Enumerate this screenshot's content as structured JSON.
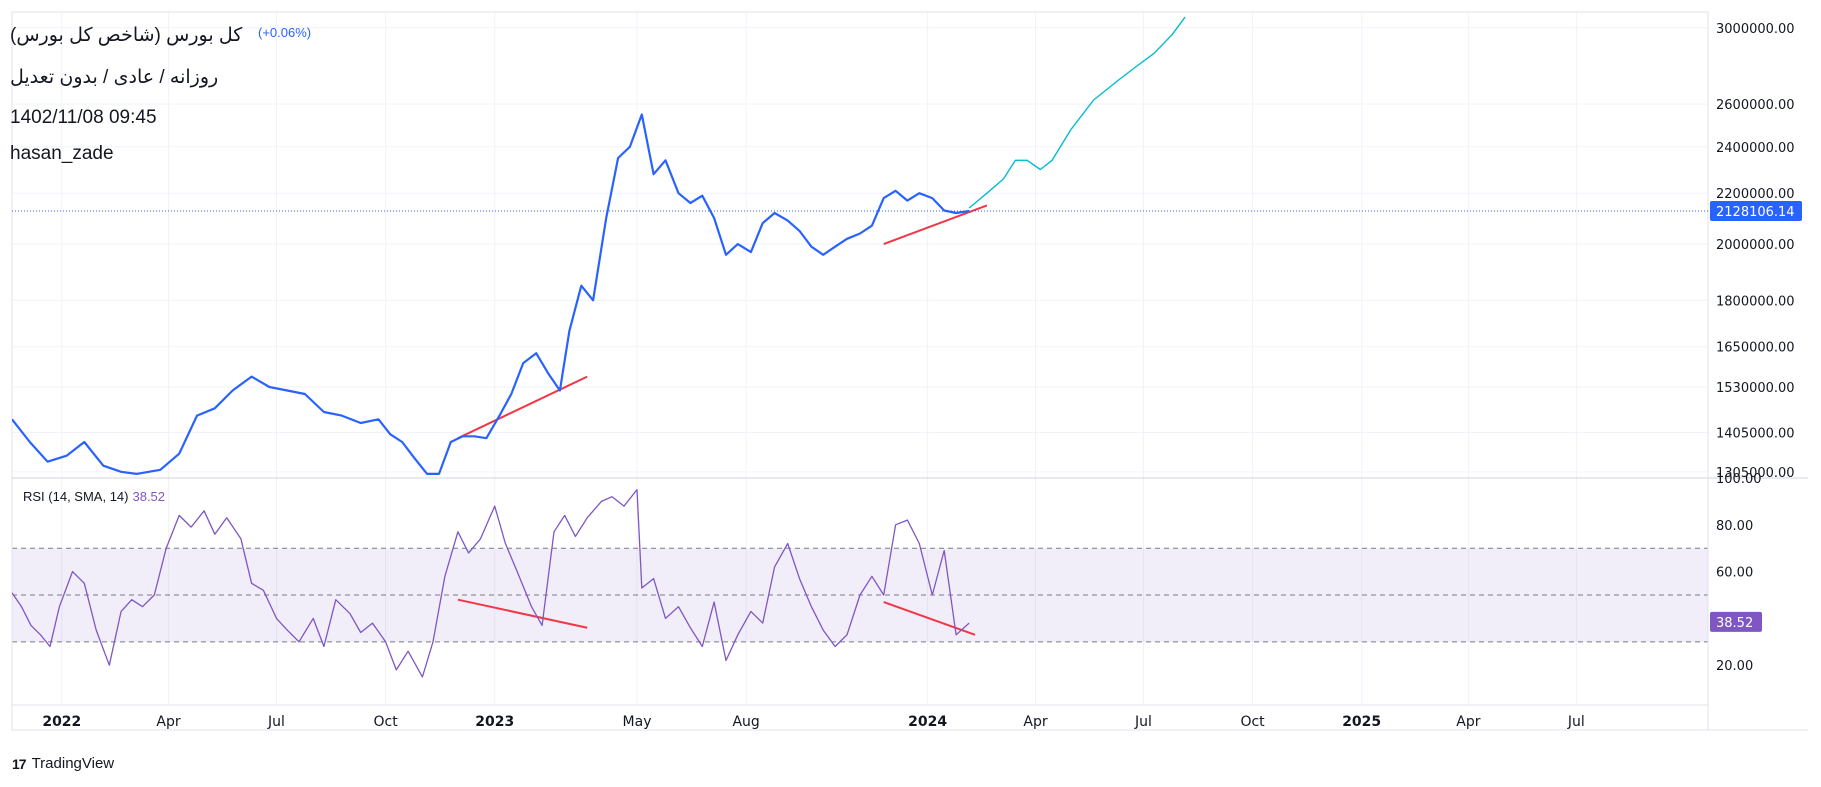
{
  "header": {
    "title": "کل بورس (شاخص کل بورس)",
    "subtitle": "روزانه / عادی / بدون تعدیل",
    "datetime": "1402/11/08 09:45",
    "author": "hasan_zade",
    "change": "(+0.06%)"
  },
  "colors": {
    "price_line": "#2962ff",
    "projection_line": "#00bcd4",
    "trend_line": "#f23645",
    "rsi_line": "#7e57c2",
    "rsi_band": "#7e57c2",
    "last_price_badge": "#2962ff",
    "rsi_badge": "#7e57c2"
  },
  "brand": {
    "name": "TradingView",
    "icon": "tradingview-logo-icon"
  },
  "chart_data": [
    {
      "type": "line",
      "name": "price",
      "y_scale": "log",
      "y_ticks": [
        "3000000.00",
        "2600000.00",
        "2400000.00",
        "2200000.00",
        "2000000.00",
        "1800000.00",
        "1650000.00",
        "1530000.00",
        "1405000.00",
        "1305000.00"
      ],
      "y_tick_values": [
        3000000,
        2600000,
        2400000,
        2200000,
        2000000,
        1800000,
        1650000,
        1530000,
        1405000,
        1305000
      ],
      "ylim": [
        1290000,
        3090000
      ],
      "x_labels": [
        "2022",
        "Apr",
        "Jul",
        "Oct",
        "2023",
        "May",
        "Aug",
        "2024",
        "Apr",
        "Jul",
        "Oct",
        "2025",
        "Apr",
        "Jul"
      ],
      "x_label_years": [
        true,
        false,
        false,
        false,
        true,
        false,
        false,
        true,
        false,
        false,
        false,
        true,
        false,
        false
      ],
      "x_label_dates": [
        "2022-01-01",
        "2022-04-01",
        "2022-07-01",
        "2022-10-01",
        "2023-01-01",
        "2023-05-01",
        "2023-08-01",
        "2024-01-01",
        "2024-04-01",
        "2024-07-01",
        "2024-10-01",
        "2025-01-01",
        "2025-04-01",
        "2025-07-01"
      ],
      "last_price": "2128106.14",
      "last_price_value": 2128106.14,
      "series": [
        {
          "name": "price",
          "dates": [
            "2021-11-20",
            "2021-12-05",
            "2021-12-20",
            "2022-01-05",
            "2022-01-20",
            "2022-02-05",
            "2022-02-20",
            "2022-03-05",
            "2022-03-25",
            "2022-04-10",
            "2022-04-25",
            "2022-05-10",
            "2022-05-25",
            "2022-06-10",
            "2022-06-25",
            "2022-07-10",
            "2022-07-25",
            "2022-08-10",
            "2022-08-25",
            "2022-09-10",
            "2022-09-25",
            "2022-10-05",
            "2022-10-15",
            "2022-10-25",
            "2022-11-05",
            "2022-11-15",
            "2022-11-25",
            "2022-12-05",
            "2022-12-15",
            "2022-12-25",
            "2023-01-05",
            "2023-01-15",
            "2023-01-25",
            "2023-02-05",
            "2023-02-15",
            "2023-02-25",
            "2023-03-05",
            "2023-03-15",
            "2023-03-25",
            "2023-04-05",
            "2023-04-15",
            "2023-04-25",
            "2023-05-05",
            "2023-05-15",
            "2023-05-25",
            "2023-06-05",
            "2023-06-15",
            "2023-06-25",
            "2023-07-05",
            "2023-07-15",
            "2023-07-25",
            "2023-08-05",
            "2023-08-15",
            "2023-08-25",
            "2023-09-05",
            "2023-09-15",
            "2023-09-25",
            "2023-10-05",
            "2023-10-15",
            "2023-10-25",
            "2023-11-05",
            "2023-11-15",
            "2023-11-25",
            "2023-12-05",
            "2023-12-15",
            "2023-12-25",
            "2024-01-05",
            "2024-01-15",
            "2024-01-25",
            "2024-02-05"
          ],
          "values": [
            1440000,
            1380000,
            1330000,
            1345000,
            1380000,
            1320000,
            1305000,
            1300000,
            1310000,
            1350000,
            1450000,
            1470000,
            1520000,
            1560000,
            1530000,
            1520000,
            1510000,
            1460000,
            1450000,
            1430000,
            1440000,
            1400000,
            1380000,
            1340000,
            1300000,
            1300000,
            1380000,
            1395000,
            1395000,
            1390000,
            1450000,
            1510000,
            1600000,
            1630000,
            1570000,
            1520000,
            1700000,
            1850000,
            1800000,
            2100000,
            2350000,
            2400000,
            2550000,
            2280000,
            2340000,
            2200000,
            2160000,
            2190000,
            2100000,
            1960000,
            2000000,
            1970000,
            2080000,
            2120000,
            2090000,
            2050000,
            1990000,
            1960000,
            1990000,
            2020000,
            2040000,
            2070000,
            2180000,
            2210000,
            2170000,
            2200000,
            2180000,
            2130000,
            2120000,
            2128106
          ]
        },
        {
          "name": "projection",
          "dates": [
            "2024-02-05",
            "2024-02-20",
            "2024-03-05",
            "2024-03-15",
            "2024-03-25",
            "2024-04-05",
            "2024-04-15",
            "2024-05-01",
            "2024-05-20",
            "2024-06-10",
            "2024-06-25",
            "2024-07-10",
            "2024-07-25",
            "2024-08-05"
          ],
          "values": [
            2140000,
            2200000,
            2260000,
            2340000,
            2340000,
            2300000,
            2340000,
            2480000,
            2620000,
            2720000,
            2790000,
            2860000,
            2960000,
            3060000
          ]
        }
      ],
      "trend_lines": [
        {
          "from": [
            "2022-12-01",
            1390000
          ],
          "to": [
            "2023-03-20",
            1560000
          ]
        },
        {
          "from": [
            "2023-11-25",
            2000000
          ],
          "to": [
            "2024-02-20",
            2150000
          ]
        }
      ]
    },
    {
      "type": "line",
      "name": "rsi",
      "legend": "RSI (14, SMA, 14)",
      "legend_value": "38.52",
      "last_value": 38.52,
      "last_value_label": "38.52",
      "y_ticks": [
        "100.00",
        "80.00",
        "60.00",
        "20.00"
      ],
      "y_tick_values": [
        100,
        80,
        60,
        20
      ],
      "ylim": [
        3,
        100
      ],
      "bands": [
        70,
        50,
        30
      ],
      "series": [
        {
          "name": "rsi",
          "dates": [
            "2021-11-20",
            "2021-11-28",
            "2021-12-06",
            "2021-12-14",
            "2021-12-22",
            "2021-12-30",
            "2022-01-10",
            "2022-01-20",
            "2022-01-30",
            "2022-02-10",
            "2022-02-20",
            "2022-03-01",
            "2022-03-10",
            "2022-03-20",
            "2022-03-30",
            "2022-04-10",
            "2022-04-20",
            "2022-05-01",
            "2022-05-10",
            "2022-05-20",
            "2022-06-01",
            "2022-06-10",
            "2022-06-20",
            "2022-07-01",
            "2022-07-10",
            "2022-07-20",
            "2022-08-01",
            "2022-08-10",
            "2022-08-20",
            "2022-09-01",
            "2022-09-10",
            "2022-09-20",
            "2022-10-01",
            "2022-10-10",
            "2022-10-20",
            "2022-11-01",
            "2022-11-10",
            "2022-11-20",
            "2022-12-01",
            "2022-12-10",
            "2022-12-20",
            "2023-01-01",
            "2023-01-10",
            "2023-01-20",
            "2023-02-01",
            "2023-02-10",
            "2023-02-20",
            "2023-03-01",
            "2023-03-10",
            "2023-03-20",
            "2023-04-01",
            "2023-04-10",
            "2023-04-20",
            "2023-05-01",
            "2023-05-05",
            "2023-05-15",
            "2023-05-25",
            "2023-06-05",
            "2023-06-15",
            "2023-06-25",
            "2023-07-05",
            "2023-07-15",
            "2023-07-25",
            "2023-08-05",
            "2023-08-15",
            "2023-08-25",
            "2023-09-05",
            "2023-09-15",
            "2023-09-25",
            "2023-10-05",
            "2023-10-15",
            "2023-10-25",
            "2023-11-05",
            "2023-11-15",
            "2023-11-25",
            "2023-12-05",
            "2023-12-15",
            "2023-12-25",
            "2024-01-05",
            "2024-01-15",
            "2024-01-25",
            "2024-02-05"
          ],
          "values": [
            51,
            45,
            37,
            33,
            28,
            45,
            60,
            55,
            35,
            20,
            43,
            48,
            45,
            50,
            70,
            84,
            79,
            86,
            76,
            83,
            74,
            55,
            52,
            40,
            35,
            30,
            40,
            28,
            48,
            42,
            34,
            38,
            30,
            18,
            26,
            15,
            30,
            58,
            77,
            68,
            74,
            88,
            72,
            60,
            45,
            37,
            77,
            84,
            75,
            83,
            90,
            92,
            88,
            95,
            53,
            57,
            40,
            45,
            36,
            28,
            47,
            22,
            33,
            43,
            38,
            62,
            72,
            57,
            45,
            35,
            28,
            33,
            50,
            58,
            50,
            80,
            82,
            72,
            50,
            69,
            33,
            38
          ]
        }
      ],
      "trend_lines": [
        {
          "from": [
            "2022-12-01",
            48
          ],
          "to": [
            "2023-03-20",
            36
          ]
        },
        {
          "from": [
            "2023-11-25",
            47
          ],
          "to": [
            "2024-02-10",
            33
          ]
        }
      ]
    }
  ]
}
